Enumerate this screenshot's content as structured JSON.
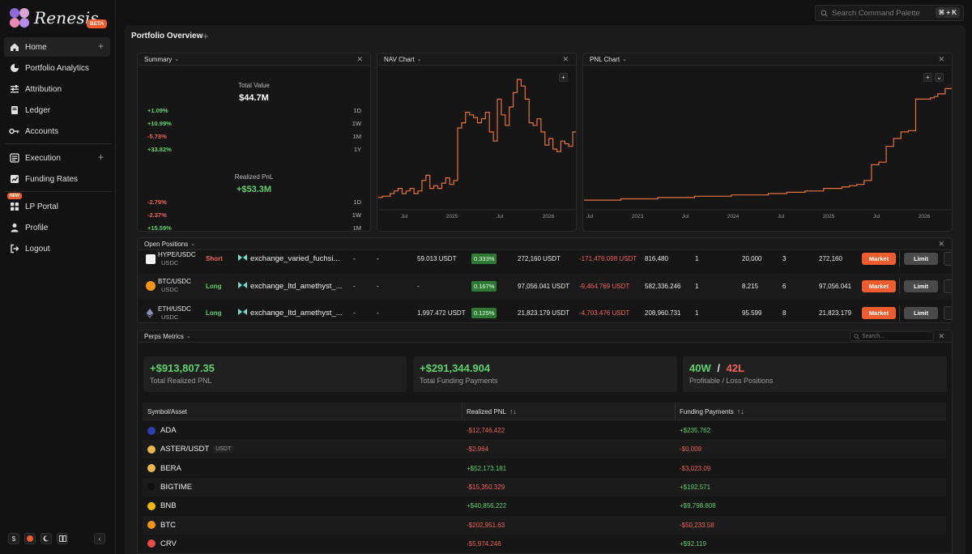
{
  "app": {
    "name": "Renesis",
    "beta_label": "BETA",
    "new_label": "NEW"
  },
  "colors": {
    "accent": "#ef5c2d",
    "positive": "#5fd16c",
    "negative": "#f0625a",
    "line": "#e8713d"
  },
  "sidebar": {
    "items": [
      {
        "label": "Home",
        "icon": "home-icon"
      },
      {
        "label": "Portfolio Analytics",
        "icon": "pie-icon"
      },
      {
        "label": "Attribution",
        "icon": "sliders-icon"
      },
      {
        "label": "Ledger",
        "icon": "book-icon"
      },
      {
        "label": "Accounts",
        "icon": "key-icon"
      },
      {
        "label": "Execution",
        "icon": "terminal-icon"
      },
      {
        "label": "Funding Rates",
        "icon": "chart-icon"
      },
      {
        "label": "LP Portal",
        "icon": "grid-icon"
      },
      {
        "label": "Profile",
        "icon": "user-icon"
      },
      {
        "label": "Logout",
        "icon": "logout-icon"
      }
    ],
    "tools": [
      "$"
    ]
  },
  "command": {
    "placeholder": "Search Command Palette",
    "shortcut": "⌘ + K"
  },
  "main": {
    "title": "Portfolio Overview"
  },
  "summary": {
    "title": "Summary",
    "total_value_label": "Total Value",
    "total_value": "$44.7M",
    "value_changes": [
      {
        "value": "+1.09%",
        "period": "1D",
        "sign": "pos"
      },
      {
        "value": "+10.99%",
        "period": "1W",
        "sign": "pos"
      },
      {
        "value": "-5.73%",
        "period": "1M",
        "sign": "neg"
      },
      {
        "value": "+33.82%",
        "period": "1Y",
        "sign": "pos"
      }
    ],
    "pnl_label": "Realized PnL",
    "pnl_value": "+$53.3M",
    "pnl_changes": [
      {
        "value": "-2.79%",
        "period": "1D",
        "sign": "neg"
      },
      {
        "value": "-2.37%",
        "period": "1W",
        "sign": "neg"
      },
      {
        "value": "+15.59%",
        "period": "1M",
        "sign": "pos"
      }
    ]
  },
  "nav_chart": {
    "title": "NAV Chart",
    "x_ticks": [
      "Jul",
      "2025",
      "Jul",
      "2026"
    ]
  },
  "pnl_chart": {
    "title": "PNL Chart",
    "x_ticks": [
      "Jul",
      "2023",
      "Jul",
      "2024",
      "Jul",
      "2025",
      "Jul",
      "2026"
    ]
  },
  "chart_data": [
    {
      "type": "line",
      "title": "NAV Chart",
      "x": [
        0,
        2,
        4,
        6,
        8,
        10,
        12,
        14,
        16,
        18,
        20,
        22,
        24,
        26,
        28,
        30,
        32,
        34,
        36,
        38,
        40,
        42,
        44,
        46,
        48,
        50,
        52,
        54,
        56,
        58,
        60,
        62,
        64,
        66,
        68,
        70,
        72,
        74,
        76,
        78,
        80,
        82,
        84,
        86,
        88,
        90,
        92,
        94,
        96,
        98,
        100
      ],
      "values": [
        0.05,
        0.06,
        0.06,
        0.08,
        0.1,
        0.12,
        0.08,
        0.1,
        0.12,
        0.08,
        0.1,
        0.18,
        0.22,
        0.12,
        0.14,
        0.12,
        0.16,
        0.2,
        0.15,
        0.18,
        0.58,
        0.62,
        0.7,
        0.68,
        0.66,
        0.62,
        0.65,
        0.7,
        0.55,
        0.48,
        0.8,
        0.68,
        0.6,
        0.74,
        0.85,
        0.95,
        0.9,
        0.8,
        0.62,
        0.6,
        0.65,
        0.55,
        0.45,
        0.5,
        0.42,
        0.4,
        0.48,
        0.46,
        0.44,
        0.55,
        0.5
      ],
      "xlabel": "",
      "ylabel": ""
    },
    {
      "type": "line",
      "title": "PNL Chart",
      "x": [
        0,
        10,
        20,
        30,
        40,
        50,
        55,
        60,
        65,
        70,
        72,
        74,
        76,
        78,
        80,
        82,
        84,
        86,
        88,
        90,
        92,
        94,
        95,
        96,
        98,
        100
      ],
      "values": [
        0.03,
        0.04,
        0.05,
        0.06,
        0.07,
        0.08,
        0.09,
        0.1,
        0.12,
        0.13,
        0.14,
        0.15,
        0.18,
        0.3,
        0.32,
        0.44,
        0.5,
        0.55,
        0.56,
        0.8,
        0.8,
        0.81,
        0.82,
        0.84,
        0.88,
        0.94
      ],
      "xlabel": "",
      "ylabel": ""
    }
  ],
  "positions": {
    "title": "Open Positions",
    "rows": [
      {
        "pair": "HYPE/USDC",
        "quote": "USDC",
        "side": "Short",
        "side_type": "short",
        "exchange": "exchange_varied_fuchsi...",
        "dash1": "-",
        "dash2": "-",
        "notional": "59.013 USDT",
        "funding": "0.333%",
        "value": "272,160 USDT",
        "pnl": "-171,476.098 USDT",
        "qty": "816,480",
        "lev": "1",
        "entry": "20,000",
        "count": "3",
        "total": "272,160",
        "market": "Market",
        "limit": "Limit",
        "icon": "hype"
      },
      {
        "pair": "BTC/USDC",
        "quote": "USDC",
        "side": "Long",
        "side_type": "long",
        "exchange": "exchange_ltd_amethyst_...",
        "dash1": "-",
        "dash2": "-",
        "notional": "-",
        "funding": "0.167%",
        "value": "97,056.041 USDT",
        "pnl": "-9,464.769 USDT",
        "qty": "582,336.246",
        "lev": "1",
        "entry": "8.215",
        "count": "6",
        "total": "97,056.041",
        "market": "Market",
        "limit": "Limit",
        "icon": "btc"
      },
      {
        "pair": "ETH/USDC",
        "quote": "USDC",
        "side": "Long",
        "side_type": "long",
        "exchange": "exchange_ltd_amethyst_...",
        "dash1": "-",
        "dash2": "-",
        "notional": "1,997.472 USDT",
        "funding": "0.125%",
        "value": "21,823.179 USDT",
        "pnl": "-4,703.476 USDT",
        "qty": "208,960.731",
        "lev": "1",
        "entry": "95.599",
        "count": "8",
        "total": "21,823.179",
        "market": "Market",
        "limit": "Limit",
        "icon": "eth"
      }
    ]
  },
  "perps": {
    "title": "Perps Metrics",
    "search_placeholder": "Search...",
    "metrics": {
      "total_pnl": "+$913,807.35",
      "total_pnl_label": "Total Realized PNL",
      "funding": "+$291,344.904",
      "funding_label": "Total Funding Payments",
      "wins": "40W",
      "slash": "/",
      "losses": "42L",
      "wl_label": "Profitable / Loss Positions"
    },
    "columns": [
      "Symbol/Asset",
      "Realized PNL",
      "Funding Payments"
    ],
    "rows": [
      {
        "symbol": "ADA",
        "quote": "",
        "pnl": "-$12,746.422",
        "pnl_sign": "neg",
        "funding": "+$235.762",
        "funding_sign": "pos",
        "coin": "#2b3fae"
      },
      {
        "symbol": "ASTER/USDT",
        "quote": "USDT",
        "pnl": "-$2.964",
        "pnl_sign": "neg",
        "funding": "-$0.009",
        "funding_sign": "neg",
        "coin": "#e8b64a"
      },
      {
        "symbol": "BERA",
        "quote": "",
        "pnl": "+$52,173.181",
        "pnl_sign": "pos",
        "funding": "-$3,023.09",
        "funding_sign": "neg",
        "coin": "#e8b64a"
      },
      {
        "symbol": "BIGTIME",
        "quote": "",
        "pnl": "-$15,350.329",
        "pnl_sign": "neg",
        "funding": "+$192.571",
        "funding_sign": "pos",
        "coin": "#111111"
      },
      {
        "symbol": "BNB",
        "quote": "",
        "pnl": "+$40,856.222",
        "pnl_sign": "pos",
        "funding": "+$9,798.808",
        "funding_sign": "pos",
        "coin": "#f0b90b"
      },
      {
        "symbol": "BTC",
        "quote": "",
        "pnl": "-$202,951.63",
        "pnl_sign": "neg",
        "funding": "-$50,233.58",
        "funding_sign": "neg",
        "coin": "#f7931a"
      },
      {
        "symbol": "CRV",
        "quote": "",
        "pnl": "-$5,974.246",
        "pnl_sign": "neg",
        "funding": "+$92.119",
        "funding_sign": "pos",
        "coin": "#e84a4a"
      }
    ]
  }
}
